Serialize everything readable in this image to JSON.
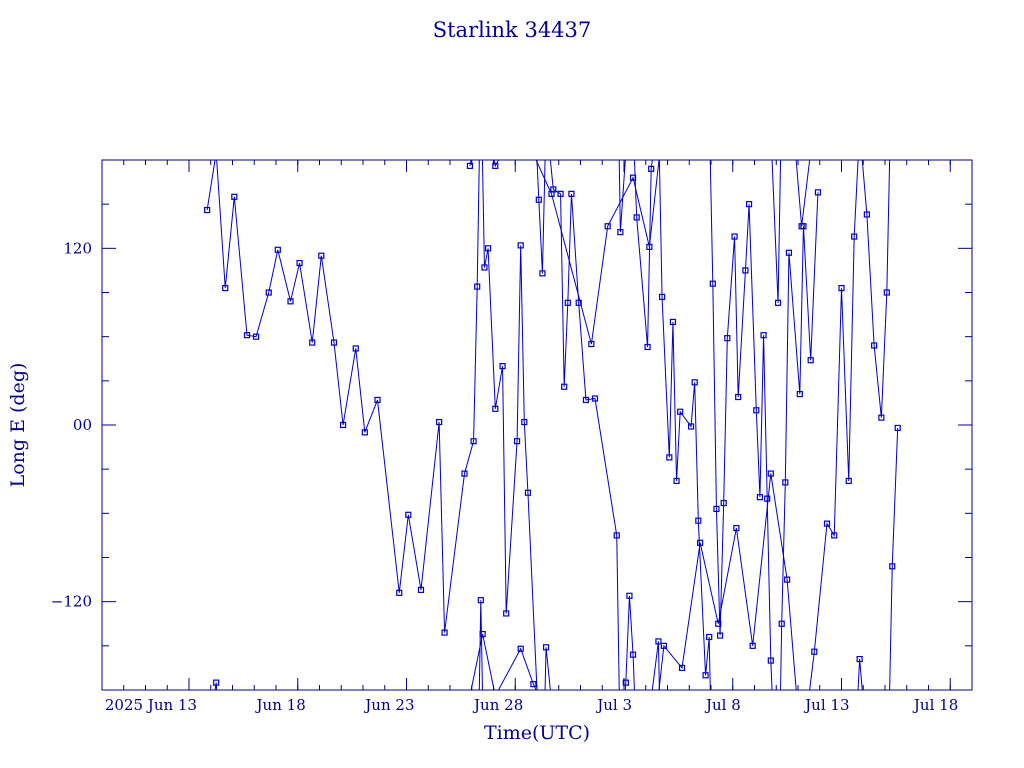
{
  "chart_data": {
    "type": "line",
    "title": "Starlink 34437",
    "xlabel": "Time(UTC)",
    "ylabel": "Long E (deg)",
    "x_range": [
      "2025-06-09",
      "2025-07-19"
    ],
    "y_range": [
      -180,
      180
    ],
    "x_ticks": [
      {
        "date": "2025-06-13",
        "label": "2025 Jun 13"
      },
      {
        "date": "2025-06-18",
        "label": "Jun 18"
      },
      {
        "date": "2025-06-23",
        "label": "Jun 23"
      },
      {
        "date": "2025-06-28",
        "label": "Jun 28"
      },
      {
        "date": "2025-07-03",
        "label": "Jul 3"
      },
      {
        "date": "2025-07-08",
        "label": "Jul 8"
      },
      {
        "date": "2025-07-13",
        "label": "Jul 13"
      },
      {
        "date": "2025-07-18",
        "label": "Jul 18"
      }
    ],
    "y_ticks": [
      {
        "value": 120,
        "label": "120"
      },
      {
        "value": 0,
        "label": "00"
      },
      {
        "value": -120,
        "label": "−120"
      }
    ],
    "grid": false,
    "wrap_longitude": true,
    "series": [
      {
        "color": "#0000c8",
        "points": [
          [
            "2025-06-13 20:00",
            146
          ],
          [
            "2025-06-14 06:00",
            -175
          ],
          [
            "2025-06-14 16:00",
            93
          ],
          [
            "2025-06-15 02:00",
            155
          ],
          [
            "2025-06-15 16:00",
            61
          ],
          [
            "2025-06-16 02:00",
            60
          ],
          [
            "2025-06-16 16:00",
            90
          ],
          [
            "2025-06-17 02:00",
            119
          ],
          [
            "2025-06-17 16:00",
            84
          ],
          [
            "2025-06-18 02:00",
            110
          ],
          [
            "2025-06-18 16:00",
            56
          ],
          [
            "2025-06-19 02:00",
            115
          ],
          [
            "2025-06-19 16:00",
            56
          ],
          [
            "2025-06-20 02:00",
            0
          ],
          [
            "2025-06-20 16:00",
            52
          ],
          [
            "2025-06-21 02:00",
            -5
          ],
          [
            "2025-06-21 16:00",
            17
          ],
          [
            "2025-06-22 16:00",
            -114
          ],
          [
            "2025-06-23 02:00",
            -61
          ],
          [
            "2025-06-23 16:00",
            -112
          ],
          [
            "2025-06-24 12:00",
            2
          ],
          [
            "2025-06-24 18:00",
            -141
          ],
          [
            "2025-06-25 16:00",
            -33
          ],
          [
            "2025-06-26 02:00",
            -11
          ],
          [
            "2025-06-26 06:00",
            94
          ],
          [
            "2025-06-26 10:00",
            -119
          ],
          [
            "2025-06-26 14:00",
            107
          ],
          [
            "2025-06-26 18:00",
            120
          ],
          [
            "2025-06-27 02:00",
            11
          ],
          [
            "2025-06-27 10:00",
            40
          ],
          [
            "2025-06-27 14:00",
            -128
          ],
          [
            "2025-06-28 02:00",
            -11
          ],
          [
            "2025-06-28 06:00",
            122
          ],
          [
            "2025-06-28 10:00",
            2
          ],
          [
            "2025-06-28 14:00",
            -46
          ],
          [
            "2025-06-29 02:00",
            153
          ],
          [
            "2025-06-29 06:00",
            103
          ],
          [
            "2025-06-29 10:00",
            -151
          ],
          [
            "2025-06-29 18:00",
            160
          ],
          [
            "2025-06-30 02:00",
            157
          ],
          [
            "2025-06-30 06:00",
            26
          ],
          [
            "2025-06-30 10:00",
            83
          ],
          [
            "2025-06-30 14:00",
            157
          ],
          [
            "2025-06-30 22:00",
            83
          ],
          [
            "2025-07-01 06:00",
            17
          ],
          [
            "2025-07-01 16:00",
            18
          ],
          [
            "2025-07-02 16:00",
            -75
          ],
          [
            "2025-07-02 20:00",
            131
          ],
          [
            "2025-07-03 02:00",
            -175
          ],
          [
            "2025-07-03 06:00",
            -116
          ],
          [
            "2025-07-03 10:00",
            -156
          ],
          [
            "2025-07-03 14:00",
            141
          ],
          [
            "2025-07-04 02:00",
            53
          ],
          [
            "2025-07-04 06:00",
            174
          ],
          [
            "2025-07-04 14:00",
            -147
          ],
          [
            "2025-07-04 18:00",
            87
          ],
          [
            "2025-07-05 02:00",
            -22
          ],
          [
            "2025-07-05 06:00",
            70
          ],
          [
            "2025-07-05 10:00",
            -38
          ],
          [
            "2025-07-05 14:00",
            9
          ],
          [
            "2025-07-06 02:00",
            -1
          ],
          [
            "2025-07-06 06:00",
            29
          ],
          [
            "2025-07-06 10:00",
            -65
          ],
          [
            "2025-07-06 18:00",
            -170
          ],
          [
            "2025-07-06 22:00",
            -144
          ],
          [
            "2025-07-07 02:00",
            96
          ],
          [
            "2025-07-07 06:00",
            -57
          ],
          [
            "2025-07-07 10:00",
            -143
          ],
          [
            "2025-07-07 14:00",
            -53
          ],
          [
            "2025-07-07 18:00",
            59
          ],
          [
            "2025-07-08 02:00",
            128
          ],
          [
            "2025-07-08 06:00",
            19
          ],
          [
            "2025-07-08 14:00",
            105
          ],
          [
            "2025-07-08 18:00",
            150
          ],
          [
            "2025-07-09 02:00",
            10
          ],
          [
            "2025-07-09 06:00",
            -49
          ],
          [
            "2025-07-09 10:00",
            61
          ],
          [
            "2025-07-09 14:00",
            -50
          ],
          [
            "2025-07-09 18:00",
            -160
          ],
          [
            "2025-07-10 02:00",
            83
          ],
          [
            "2025-07-10 06:00",
            -135
          ],
          [
            "2025-07-10 10:00",
            -39
          ],
          [
            "2025-07-10 14:00",
            117
          ],
          [
            "2025-07-11 02:00",
            21
          ],
          [
            "2025-07-11 06:00",
            135
          ],
          [
            "2025-07-11 14:00",
            44
          ],
          [
            "2025-07-11 22:00",
            158
          ]
        ]
      },
      {
        "color": "#0000c8",
        "points": [
          [
            "2025-06-25 22:00",
            176
          ],
          [
            "2025-06-26 12:00",
            -142
          ],
          [
            "2025-06-27 02:00",
            176
          ],
          [
            "2025-06-28 06:00",
            -152
          ],
          [
            "2025-06-28 20:00",
            -176
          ],
          [
            "2025-06-29 16:00",
            157
          ],
          [
            "2025-07-01 12:00",
            55
          ],
          [
            "2025-07-02 06:00",
            135
          ],
          [
            "2025-07-03 10:00",
            168
          ],
          [
            "2025-07-04 04:00",
            121
          ],
          [
            "2025-07-04 20:00",
            -150
          ],
          [
            "2025-07-05 16:00",
            -165
          ],
          [
            "2025-07-06 12:00",
            -80
          ],
          [
            "2025-07-07 08:00",
            -135
          ],
          [
            "2025-07-08 04:00",
            -70
          ],
          [
            "2025-07-08 22:00",
            -150
          ],
          [
            "2025-07-09 18:00",
            -33
          ],
          [
            "2025-07-10 12:00",
            -105
          ],
          [
            "2025-07-11 04:00",
            135
          ],
          [
            "2025-07-11 18:00",
            -154
          ],
          [
            "2025-07-12 08:00",
            -67
          ],
          [
            "2025-07-12 16:00",
            -75
          ],
          [
            "2025-07-13 00:00",
            93
          ],
          [
            "2025-07-13 08:00",
            -38
          ],
          [
            "2025-07-13 14:00",
            128
          ],
          [
            "2025-07-13 20:00",
            -159
          ],
          [
            "2025-07-14 04:00",
            143
          ],
          [
            "2025-07-14 12:00",
            54
          ],
          [
            "2025-07-14 20:00",
            5
          ],
          [
            "2025-07-15 02:00",
            90
          ],
          [
            "2025-07-15 08:00",
            -96
          ],
          [
            "2025-07-15 14:00",
            -2
          ]
        ]
      }
    ]
  }
}
